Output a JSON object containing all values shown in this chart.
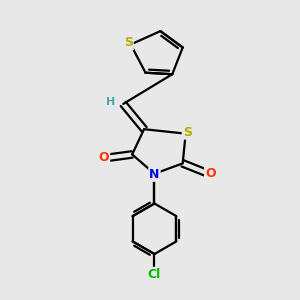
{
  "bg_color": "#e8e8e8",
  "bond_color": "#000000",
  "atom_colors": {
    "S": "#bbaa00",
    "N": "#0000ee",
    "O": "#ff3300",
    "Cl": "#00bb00",
    "H": "#44aaaa",
    "C": "#000000"
  },
  "bond_width": 1.6,
  "font_size_atom": 9,
  "font_size_h": 8,
  "xlim": [
    0,
    10
  ],
  "ylim": [
    0,
    10
  ]
}
